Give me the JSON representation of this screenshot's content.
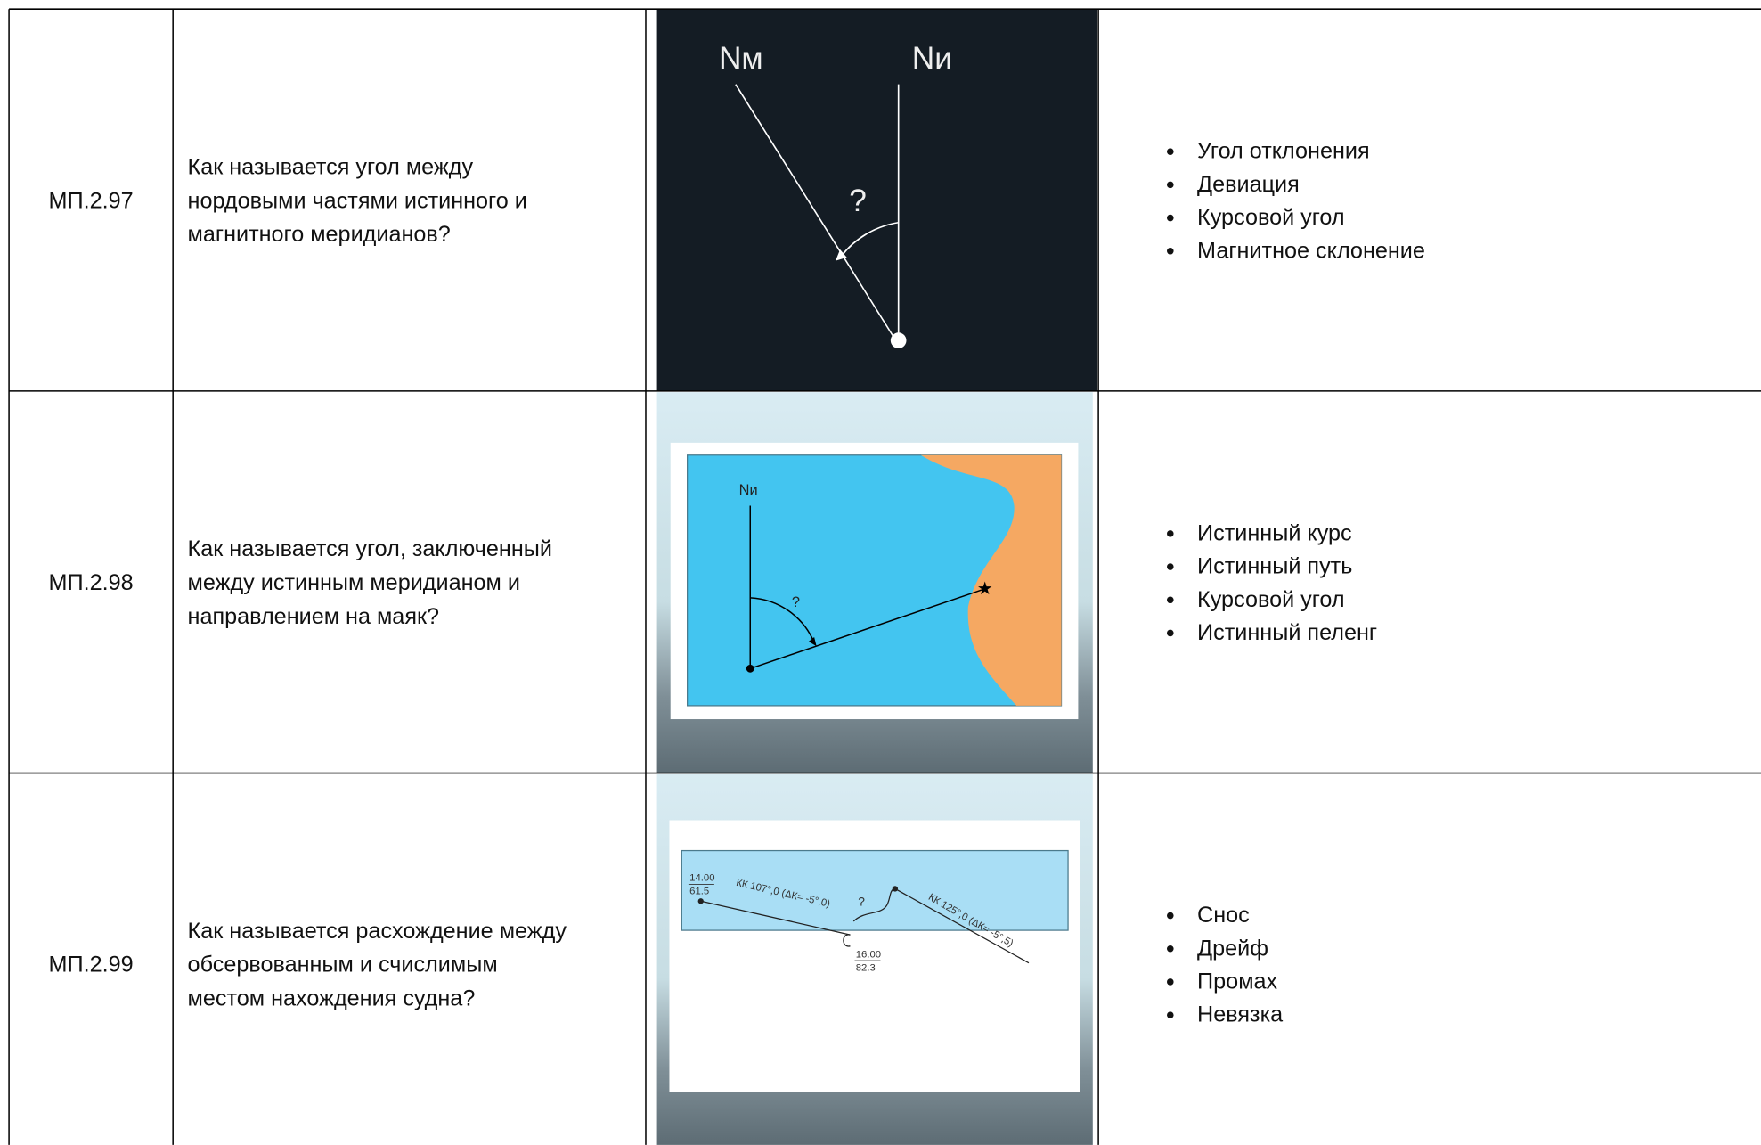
{
  "rows": [
    {
      "id": "МП.2.97",
      "question": [
        "Как называется угол между",
        "нордовыми частями истинного и",
        "магнитного меридианов?"
      ],
      "figure": [
        "Nм",
        "Nи",
        "?"
      ],
      "options": [
        "Угол отклонения",
        "Девиация",
        "Курсовой угол",
        "Магнитное склонение"
      ]
    },
    {
      "id": "МП.2.98",
      "question": [
        "Как называется угол, заключенный",
        "между истинным меридианом и",
        "направлением на маяк?"
      ],
      "figure": [
        "Nи",
        "?"
      ],
      "options": [
        "Истинный курс",
        "Истинный путь",
        "Курсовой угол",
        "Истинный пеленг"
      ]
    },
    {
      "id": "МП.2.99",
      "question": [
        "Как называется расхождение между",
        "обсервованным и счислимым",
        "местом нахождения судна?"
      ],
      "figure": [
        "14.00",
        "61.5",
        "КК 107°,0 (ΔК= -5°,0)",
        "?",
        "16.00",
        "82.3",
        "КК 125°,0 (ΔК= -5°,5)"
      ],
      "options": [
        "Снос",
        "Дрейф",
        "Промах",
        "Невязка"
      ]
    }
  ]
}
